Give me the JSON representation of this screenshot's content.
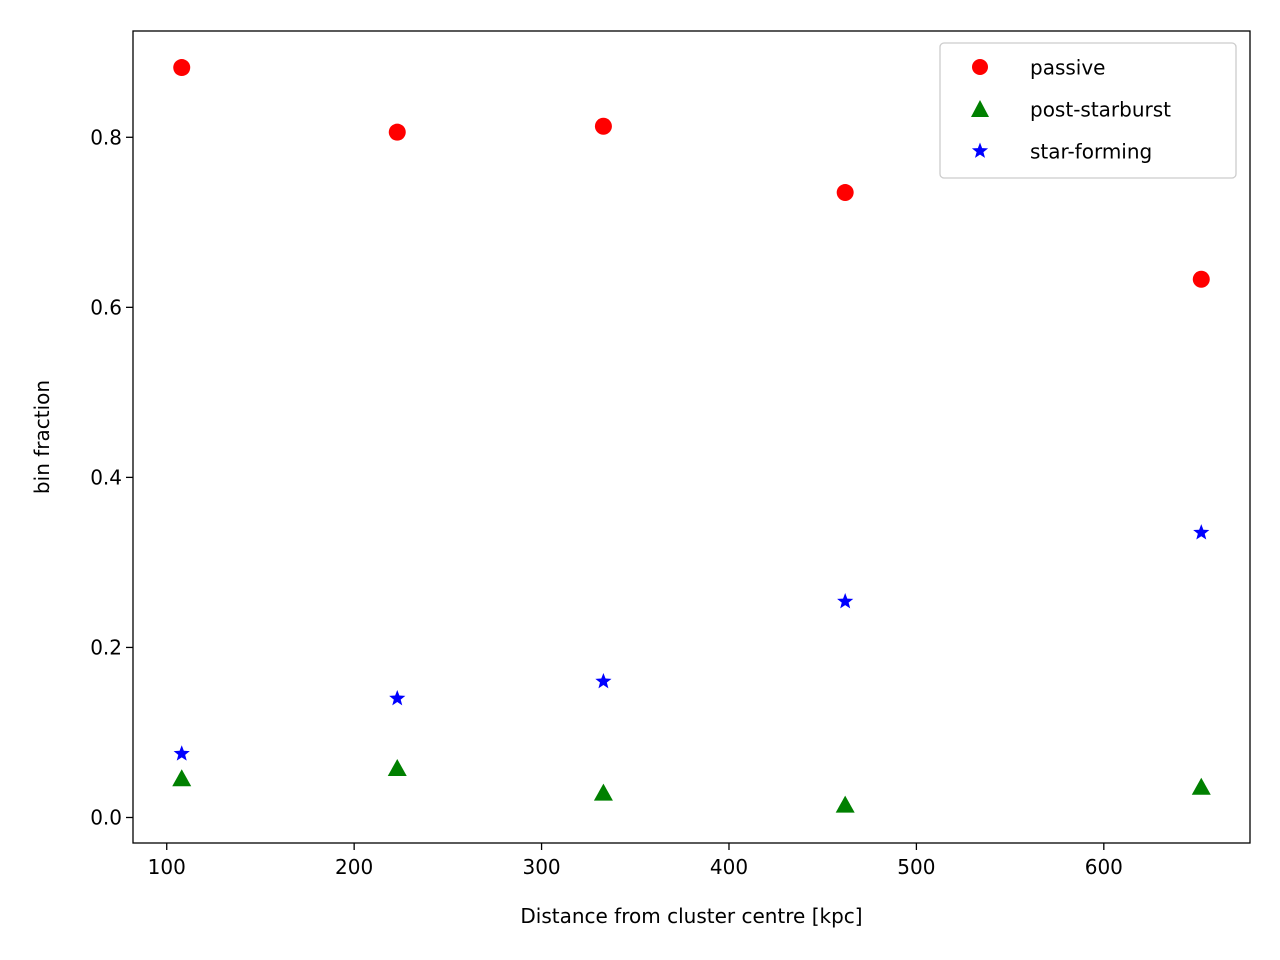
{
  "chart_data": {
    "type": "scatter",
    "title": "",
    "xlabel": "Distance from cluster centre [kpc]",
    "ylabel": "bin fraction",
    "xlim": [
      82,
      678
    ],
    "ylim": [
      -0.03,
      0.925
    ],
    "xticks": [
      100,
      200,
      300,
      400,
      500,
      600
    ],
    "yticks": [
      0.0,
      0.2,
      0.4,
      0.6,
      0.8
    ],
    "xtick_labels": [
      "100",
      "200",
      "300",
      "400",
      "500",
      "600"
    ],
    "ytick_labels": [
      "0.0",
      "0.2",
      "0.4",
      "0.6",
      "0.8"
    ],
    "grid": false,
    "legend_position": "top-right",
    "x": [
      108,
      223,
      333,
      462,
      652
    ],
    "series": [
      {
        "name": "passive",
        "marker": "circle",
        "color": "#ff0000",
        "values": [
          0.882,
          0.806,
          0.813,
          0.735,
          0.633
        ]
      },
      {
        "name": "post-starburst",
        "marker": "triangle",
        "color": "#008000",
        "values": [
          0.045,
          0.057,
          0.028,
          0.014,
          0.035
        ]
      },
      {
        "name": "star-forming",
        "marker": "star",
        "color": "#0000ff",
        "values": [
          0.075,
          0.14,
          0.16,
          0.254,
          0.335
        ]
      }
    ]
  }
}
